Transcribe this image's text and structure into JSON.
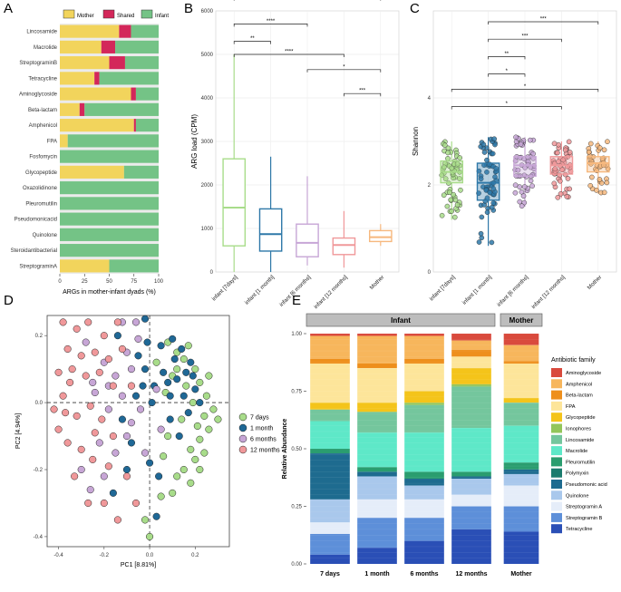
{
  "chart_data": [
    {
      "panel": "A",
      "type": "bar",
      "orientation": "horizontal",
      "stacked": true,
      "legend": [
        "Mother",
        "Shared",
        "Infant"
      ],
      "colors": {
        "Mother": "#f2d45c",
        "Shared": "#d3275a",
        "Infant": "#74c386"
      },
      "categories": [
        "Lincosamide",
        "Macrolide",
        "StreptograminB",
        "Tetracycline",
        "Aminoglycoside",
        "Beta-lactam",
        "Amphenicol",
        "FPA",
        "Fosfomycin",
        "Glycopeptide",
        "Oxazolidinone",
        "Pleuromutilin",
        "Pseudomonicacid",
        "Quinolone",
        "Steroidantibacterial",
        "StreptograminA"
      ],
      "series": [
        {
          "name": "Mother",
          "values": [
            60,
            42,
            50,
            35,
            72,
            20,
            75,
            8,
            0,
            65,
            0,
            0,
            0,
            0,
            0,
            50
          ]
        },
        {
          "name": "Shared",
          "values": [
            12,
            14,
            16,
            5,
            5,
            5,
            2,
            0,
            0,
            0,
            0,
            0,
            0,
            0,
            0,
            0
          ]
        },
        {
          "name": "Infant",
          "values": [
            28,
            44,
            34,
            60,
            23,
            75,
            23,
            92,
            100,
            35,
            100,
            100,
            100,
            100,
            100,
            50
          ]
        }
      ],
      "xticks": [
        "0",
        "25",
        "50",
        "75",
        "100"
      ],
      "xlabel": "ARGs in mother-infant dyads (%)",
      "xlim": [
        0,
        100
      ]
    },
    {
      "panel": "B",
      "type": "box",
      "ylabel": "ARG load (CPM)",
      "ylim": [
        0,
        6000
      ],
      "yticks": [
        "0",
        "1000",
        "2000",
        "3000",
        "4000",
        "5000",
        "6000"
      ],
      "categories": [
        "infant [7days]",
        "infant [1 month]",
        "infant [6 months]",
        "infant [12 months]",
        "Mother"
      ],
      "colors": [
        "#a8dc8a",
        "#2e78a8",
        "#c7a6d6",
        "#f0989a",
        "#f6b87e"
      ],
      "boxes": [
        {
          "min": 0,
          "q1": 600,
          "median": 1480,
          "q3": 2600,
          "max": 5000
        },
        {
          "min": 0,
          "q1": 480,
          "median": 870,
          "q3": 1450,
          "max": 2650
        },
        {
          "min": 150,
          "q1": 350,
          "median": 670,
          "q3": 1100,
          "max": 2200
        },
        {
          "min": 100,
          "q1": 400,
          "median": 620,
          "q3": 780,
          "max": 1400
        },
        {
          "min": 600,
          "q1": 700,
          "median": 800,
          "q3": 950,
          "max": 1100
        }
      ],
      "significance": [
        {
          "from": 0,
          "to": 1,
          "label": "**",
          "y": 5300
        },
        {
          "from": 0,
          "to": 2,
          "label": "****",
          "y": 5700
        },
        {
          "from": 0,
          "to": 4,
          "label": "**",
          "y": 6300
        },
        {
          "from": 0,
          "to": 3,
          "label": "****",
          "y": 5000
        },
        {
          "from": 2,
          "to": 4,
          "label": "*",
          "y": 4650
        },
        {
          "from": 3,
          "to": 4,
          "label": "***",
          "y": 4100
        }
      ]
    },
    {
      "panel": "C",
      "type": "box",
      "ylabel": "Shannon",
      "ylim": [
        0,
        6
      ],
      "yticks": [
        "0",
        "2",
        "4"
      ],
      "categories": [
        "infant [7days]",
        "infant [1 month]",
        "infant [6 months]",
        "infant [12 months]",
        "Mother"
      ],
      "colors": [
        "#a8dc8a",
        "#2e78a8",
        "#c7a6d6",
        "#f0989a",
        "#f6b87e"
      ],
      "boxes": [
        {
          "min": 1.2,
          "q1": 2.05,
          "median": 2.3,
          "q3": 2.55,
          "max": 3.0
        },
        {
          "min": 0.6,
          "q1": 1.65,
          "median": 2.05,
          "q3": 2.5,
          "max": 3.1
        },
        {
          "min": 1.5,
          "q1": 2.2,
          "median": 2.45,
          "q3": 2.65,
          "max": 3.1
        },
        {
          "min": 1.7,
          "q1": 2.25,
          "median": 2.45,
          "q3": 2.65,
          "max": 3.0
        },
        {
          "min": 1.8,
          "q1": 2.3,
          "median": 2.5,
          "q3": 2.65,
          "max": 3.0
        }
      ],
      "significance": [
        {
          "from": 1,
          "to": 4,
          "label": "***",
          "y": 5.75
        },
        {
          "from": 1,
          "to": 3,
          "label": "***",
          "y": 5.35
        },
        {
          "from": 1,
          "to": 2,
          "label": "**",
          "y": 4.95
        },
        {
          "from": 1,
          "to": 2,
          "label": "*",
          "y": 4.55
        },
        {
          "from": 0,
          "to": 4,
          "label": "*",
          "y": 4.2
        },
        {
          "from": 0,
          "to": 3,
          "label": "*",
          "y": 3.8
        }
      ]
    },
    {
      "panel": "D",
      "type": "scatter",
      "xlabel": "PC1 [8.81%]",
      "ylabel": "PC2 [4.94%]",
      "xlim": [
        -0.45,
        0.35
      ],
      "ylim": [
        -0.43,
        0.26
      ],
      "xticks": [
        -0.4,
        -0.2,
        0.0,
        0.2
      ],
      "yticks": [
        -0.4,
        -0.2,
        0.0,
        0.2
      ],
      "legend": [
        "7 days",
        "1 month",
        "6 months",
        "12 months"
      ],
      "colors": [
        "#a8dc8a",
        "#1f6896",
        "#c7a6d6",
        "#f0989a"
      ],
      "series": [
        {
          "name": "7 days",
          "points": [
            [
              0.08,
              0.18
            ],
            [
              0.12,
              0.15
            ],
            [
              0.15,
              0.13
            ],
            [
              0.2,
              0.1
            ],
            [
              0.22,
              0.06
            ],
            [
              0.25,
              0.02
            ],
            [
              0.28,
              -0.02
            ],
            [
              0.3,
              -0.05
            ],
            [
              0.26,
              -0.08
            ],
            [
              0.22,
              -0.11
            ],
            [
              0.18,
              -0.14
            ],
            [
              0.2,
              -0.17
            ],
            [
              0.24,
              -0.15
            ],
            [
              0.15,
              -0.2
            ],
            [
              0.12,
              -0.22
            ],
            [
              0.18,
              -0.24
            ],
            [
              0.05,
              -0.28
            ],
            [
              -0.02,
              -0.35
            ],
            [
              0.0,
              -0.4
            ],
            [
              0.1,
              0.08
            ],
            [
              0.16,
              0.05
            ],
            [
              0.19,
              0.0
            ],
            [
              0.14,
              -0.05
            ],
            [
              0.08,
              -0.1
            ],
            [
              0.06,
              -0.16
            ],
            [
              0.22,
              -0.2
            ],
            [
              0.1,
              -0.27
            ],
            [
              0.26,
              0.08
            ],
            [
              0.03,
              0.12
            ],
            [
              0.07,
              0.03
            ],
            [
              0.12,
              0.1
            ],
            [
              0.17,
              0.17
            ],
            [
              0.24,
              -0.04
            ],
            [
              0.21,
              -0.07
            ]
          ]
        },
        {
          "name": "1 month",
          "points": [
            [
              0.05,
              0.17
            ],
            [
              0.1,
              0.19
            ],
            [
              0.14,
              0.16
            ],
            [
              0.18,
              0.12
            ],
            [
              0.12,
              0.07
            ],
            [
              0.09,
              0.02
            ],
            [
              0.15,
              0.02
            ],
            [
              0.2,
              0.04
            ],
            [
              0.22,
              0.0
            ],
            [
              0.17,
              -0.03
            ],
            [
              0.02,
              0.05
            ],
            [
              -0.02,
              0.1
            ],
            [
              -0.05,
              0.14
            ],
            [
              -0.01,
              0.18
            ],
            [
              0.06,
              0.09
            ],
            [
              0.11,
              0.13
            ],
            [
              -0.06,
              0.02
            ],
            [
              -0.12,
              -0.05
            ],
            [
              -0.14,
              0.2
            ],
            [
              -0.08,
              -0.12
            ],
            [
              0.0,
              -0.18
            ],
            [
              -0.1,
              -0.2
            ],
            [
              0.04,
              -0.22
            ],
            [
              0.09,
              -0.05
            ],
            [
              0.13,
              -0.1
            ],
            [
              0.08,
              0.06
            ],
            [
              0.19,
              0.08
            ],
            [
              0.01,
              0.0
            ],
            [
              -0.03,
              0.05
            ],
            [
              0.16,
              0.09
            ],
            [
              -0.02,
              0.25
            ],
            [
              -0.16,
              -0.27
            ],
            [
              0.03,
              -0.34
            ]
          ]
        },
        {
          "name": "6 months",
          "points": [
            [
              -0.05,
              0.19
            ],
            [
              -0.1,
              0.15
            ],
            [
              -0.08,
              0.1
            ],
            [
              -0.15,
              0.08
            ],
            [
              -0.2,
              0.12
            ],
            [
              -0.25,
              0.06
            ],
            [
              -0.12,
              0.02
            ],
            [
              -0.18,
              -0.02
            ],
            [
              -0.08,
              -0.06
            ],
            [
              -0.22,
              -0.12
            ],
            [
              -0.15,
              -0.15
            ],
            [
              -0.3,
              -0.2
            ],
            [
              -0.26,
              -0.26
            ],
            [
              -0.1,
              -0.1
            ],
            [
              0.03,
              0.04
            ],
            [
              -0.04,
              -0.02
            ],
            [
              -0.28,
              0.18
            ],
            [
              -0.2,
              -0.22
            ],
            [
              -0.06,
              0.24
            ],
            [
              -0.12,
              0.24
            ],
            [
              0.05,
              -0.08
            ],
            [
              -0.02,
              -0.15
            ],
            [
              -0.18,
              0.05
            ],
            [
              -0.24,
              0.03
            ]
          ]
        },
        {
          "name": "12 months",
          "points": [
            [
              -0.38,
              0.24
            ],
            [
              -0.32,
              0.22
            ],
            [
              -0.27,
              0.24
            ],
            [
              -0.36,
              0.16
            ],
            [
              -0.3,
              0.14
            ],
            [
              -0.24,
              0.15
            ],
            [
              -0.2,
              0.2
            ],
            [
              -0.14,
              0.24
            ],
            [
              -0.4,
              0.09
            ],
            [
              -0.35,
              0.06
            ],
            [
              -0.28,
              0.08
            ],
            [
              -0.22,
              0.09
            ],
            [
              -0.18,
              0.13
            ],
            [
              -0.42,
              -0.02
            ],
            [
              -0.37,
              -0.03
            ],
            [
              -0.32,
              -0.04
            ],
            [
              -0.26,
              -0.01
            ],
            [
              -0.21,
              -0.05
            ],
            [
              -0.16,
              0.05
            ],
            [
              -0.36,
              -0.12
            ],
            [
              -0.3,
              -0.14
            ],
            [
              -0.25,
              -0.17
            ],
            [
              -0.18,
              -0.19
            ],
            [
              -0.33,
              -0.22
            ],
            [
              -0.27,
              -0.3
            ],
            [
              -0.2,
              -0.3
            ],
            [
              -0.14,
              -0.35
            ],
            [
              -0.1,
              -0.22
            ],
            [
              -0.06,
              -0.3
            ],
            [
              -0.38,
              0.02
            ],
            [
              -0.34,
              0.1
            ],
            [
              -0.12,
              0.16
            ],
            [
              -0.08,
              0.05
            ],
            [
              -0.24,
              -0.09
            ],
            [
              -0.4,
              -0.08
            ],
            [
              -0.16,
              -0.1
            ]
          ]
        }
      ]
    },
    {
      "panel": "E",
      "type": "bar",
      "stacked": true,
      "ylabel": "Relative Abundance",
      "ylim": [
        0,
        1
      ],
      "yticks": [
        "0.00",
        "0.25",
        "0.50",
        "0.75",
        "1.00"
      ],
      "facets": [
        {
          "label": "Infant",
          "categories": [
            "7 days",
            "1 month",
            "6 months",
            "12 months"
          ]
        },
        {
          "label": "Mother",
          "categories": [
            "Mother"
          ]
        }
      ],
      "legend_title": "Antibiotic family",
      "families": [
        "Aminoglycoside",
        "Amphenicol",
        "Beta-lactam",
        "FPA",
        "Glycopeptide",
        "Ionophores",
        "Lincosamide",
        "Macrolide",
        "Pleuromutilin",
        "Polymyxin",
        "Pseudomonic acid",
        "Quinolone",
        "Streptogramin A",
        "Streptogramin B",
        "Tetracycline"
      ],
      "colors": [
        "#d94a3d",
        "#f7b65c",
        "#ee8f1c",
        "#fde59a",
        "#f4c41a",
        "#93c65a",
        "#74c69d",
        "#5ee8c8",
        "#2a9d6f",
        "#1b7c6e",
        "#1e6b8f",
        "#a9c8ec",
        "#e5edf9",
        "#5d8fd9",
        "#2a4fb6"
      ],
      "series": [
        {
          "name": "Aminoglycoside",
          "values": [
            0.01,
            0.01,
            0.01,
            0.03,
            0.05
          ]
        },
        {
          "name": "Amphenicol",
          "values": [
            0.1,
            0.12,
            0.1,
            0.04,
            0.07
          ]
        },
        {
          "name": "Beta-lactam",
          "values": [
            0.02,
            0.02,
            0.02,
            0.03,
            0.01
          ]
        },
        {
          "name": "FPA",
          "values": [
            0.17,
            0.15,
            0.12,
            0.05,
            0.15
          ]
        },
        {
          "name": "Glycopeptide",
          "values": [
            0.03,
            0.04,
            0.05,
            0.07,
            0.02
          ]
        },
        {
          "name": "Ionophores",
          "values": [
            0.0,
            0.0,
            0.01,
            0.01,
            0.0
          ]
        },
        {
          "name": "Lincosamide",
          "values": [
            0.05,
            0.09,
            0.12,
            0.18,
            0.1
          ]
        },
        {
          "name": "Macrolide",
          "values": [
            0.12,
            0.15,
            0.17,
            0.19,
            0.16
          ]
        },
        {
          "name": "Pleuromutilin",
          "values": [
            0.02,
            0.02,
            0.03,
            0.02,
            0.03
          ]
        },
        {
          "name": "Polymyxin",
          "values": [
            0.0,
            0.0,
            0.0,
            0.0,
            0.0
          ]
        },
        {
          "name": "Pseudomonic acid",
          "values": [
            0.2,
            0.02,
            0.03,
            0.01,
            0.02
          ]
        },
        {
          "name": "Quinolone",
          "values": [
            0.1,
            0.1,
            0.06,
            0.07,
            0.05
          ]
        },
        {
          "name": "Streptogramin A",
          "values": [
            0.05,
            0.08,
            0.08,
            0.05,
            0.09
          ]
        },
        {
          "name": "Streptogramin B",
          "values": [
            0.09,
            0.13,
            0.1,
            0.1,
            0.11
          ]
        },
        {
          "name": "Tetracycline",
          "values": [
            0.04,
            0.07,
            0.1,
            0.15,
            0.14
          ]
        }
      ]
    }
  ],
  "panel_labels": [
    "A",
    "B",
    "C",
    "D",
    "E"
  ]
}
